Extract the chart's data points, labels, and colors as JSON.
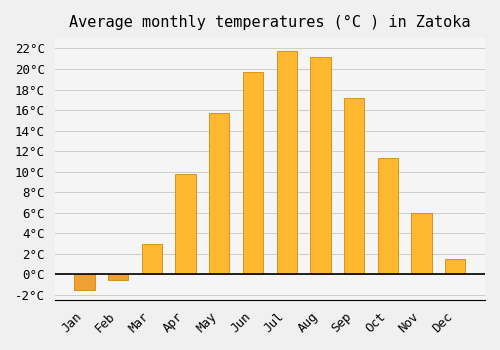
{
  "title": "Average monthly temperatures (°C ) in Zatoka",
  "months": [
    "Jan",
    "Feb",
    "Mar",
    "Apr",
    "May",
    "Jun",
    "Jul",
    "Aug",
    "Sep",
    "Oct",
    "Nov",
    "Dec"
  ],
  "values": [
    -1.5,
    -0.5,
    3.0,
    9.8,
    15.7,
    19.7,
    21.7,
    21.2,
    17.2,
    11.3,
    6.0,
    1.5
  ],
  "bar_color_pos": "#FDB830",
  "bar_color_neg": "#F0A030",
  "bar_edge_color": "#D4880A",
  "background_color": "#F0F0F0",
  "plot_bg_color": "#F5F5F5",
  "grid_color": "#CCCCCC",
  "ylim": [
    -2.5,
    23
  ],
  "yticks": [
    -2,
    0,
    2,
    4,
    6,
    8,
    10,
    12,
    14,
    16,
    18,
    20,
    22
  ],
  "title_fontsize": 11,
  "tick_fontsize": 9,
  "font_family": "monospace"
}
